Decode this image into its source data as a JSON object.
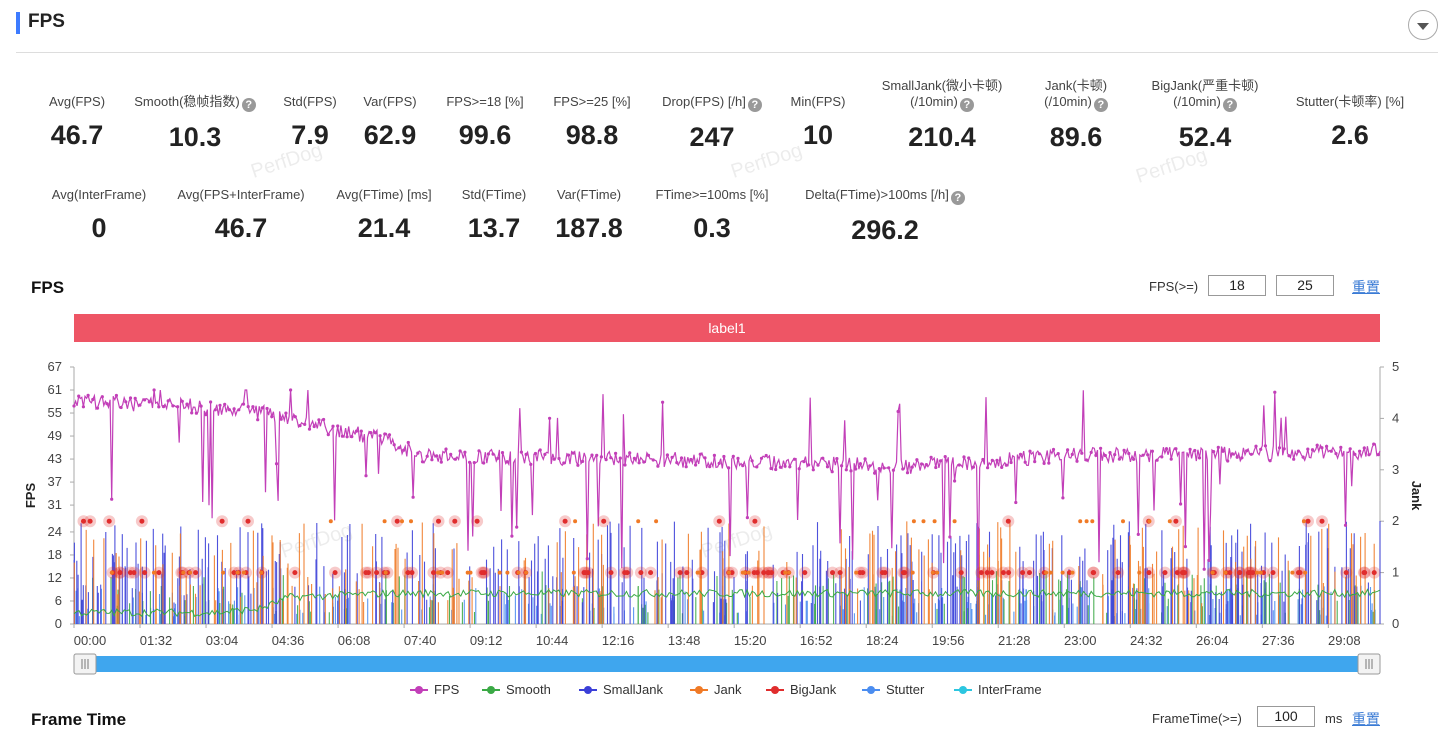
{
  "header": {
    "title": "FPS"
  },
  "stats_row1": [
    {
      "label": "Avg(FPS)",
      "value": "46.7",
      "help": false,
      "cx": 77
    },
    {
      "label": "Smooth(稳帧指数)",
      "value": "10.3",
      "help": true,
      "cx": 195
    },
    {
      "label": "Std(FPS)",
      "value": "7.9",
      "help": false,
      "cx": 310
    },
    {
      "label": "Var(FPS)",
      "value": "62.9",
      "help": false,
      "cx": 390
    },
    {
      "label": "FPS>=18 [%]",
      "value": "99.6",
      "help": false,
      "cx": 485
    },
    {
      "label": "FPS>=25 [%]",
      "value": "98.8",
      "help": false,
      "cx": 592
    },
    {
      "label": "Drop(FPS) [/h]",
      "value": "247",
      "help": true,
      "cx": 712
    },
    {
      "label": "Min(FPS)",
      "value": "10",
      "help": false,
      "cx": 818
    },
    {
      "label": "SmallJank(微小卡顿)",
      "label2": "(/10min)",
      "value": "210.4",
      "help": true,
      "cx": 942
    },
    {
      "label": "Jank(卡顿)",
      "label2": "(/10min)",
      "value": "89.6",
      "help": true,
      "cx": 1076
    },
    {
      "label": "BigJank(严重卡顿)",
      "label2": "(/10min)",
      "value": "52.4",
      "help": true,
      "cx": 1205
    },
    {
      "label": "Stutter(卡顿率) [%]",
      "value": "2.6",
      "help": false,
      "cx": 1350
    }
  ],
  "stats_row2": [
    {
      "label": "Avg(InterFrame)",
      "value": "0",
      "help": false,
      "cx": 99
    },
    {
      "label": "Avg(FPS+InterFrame)",
      "value": "46.7",
      "help": false,
      "cx": 241
    },
    {
      "label": "Avg(FTime) [ms]",
      "value": "21.4",
      "help": false,
      "cx": 384
    },
    {
      "label": "Std(FTime)",
      "value": "13.7",
      "help": false,
      "cx": 494
    },
    {
      "label": "Var(FTime)",
      "value": "187.8",
      "help": false,
      "cx": 589
    },
    {
      "label": "FTime>=100ms [%]",
      "value": "0.3",
      "help": false,
      "cx": 712
    },
    {
      "label": "Delta(FTime)>100ms [/h]",
      "value": "296.2",
      "help": true,
      "cx": 885
    }
  ],
  "watermark": "PerfDog",
  "fps_section": {
    "title": "FPS",
    "threshold_label": "FPS(>=)",
    "threshold1": "18",
    "threshold2": "25",
    "reset": "重置",
    "label_band": "label1"
  },
  "frametime_section": {
    "title": "Frame Time",
    "threshold_label": "FrameTime(>=)",
    "threshold": "100",
    "unit": "ms",
    "reset": "重置"
  },
  "legend": [
    {
      "name": "FPS",
      "color": "#c23fb8"
    },
    {
      "name": "Smooth",
      "color": "#3aa945"
    },
    {
      "name": "SmallJank",
      "color": "#3b3fd8"
    },
    {
      "name": "Jank",
      "color": "#f07a26"
    },
    {
      "name": "BigJank",
      "color": "#e02d2d"
    },
    {
      "name": "Stutter",
      "color": "#4b8df0"
    },
    {
      "name": "InterFrame",
      "color": "#2cc6e0"
    }
  ],
  "chart_data": {
    "type": "line",
    "ylabel": "FPS",
    "y2label": "Jank",
    "ylim": [
      0,
      67
    ],
    "y_ticks": [
      "0",
      "6",
      "12",
      "18",
      "24",
      "31",
      "37",
      "43",
      "49",
      "55",
      "61",
      "67"
    ],
    "y2lim": [
      0,
      5
    ],
    "y2_ticks": [
      "0",
      "1",
      "2",
      "3",
      "4",
      "5"
    ],
    "x_ticks": [
      "00:00",
      "01:32",
      "03:04",
      "04:36",
      "06:08",
      "07:40",
      "09:12",
      "10:44",
      "12:16",
      "13:48",
      "15:20",
      "16:52",
      "18:24",
      "19:56",
      "21:28",
      "23:00",
      "24:32",
      "26:04",
      "27:36",
      "29:08"
    ],
    "x_range_seconds": [
      0,
      1820
    ],
    "fps_segments": [
      [
        0,
        58
      ],
      [
        150,
        57
      ],
      [
        270,
        55
      ],
      [
        380,
        50
      ],
      [
        440,
        48
      ],
      [
        480,
        44
      ],
      [
        800,
        43
      ],
      [
        1000,
        42
      ],
      [
        1160,
        41
      ],
      [
        1380,
        44
      ],
      [
        1490,
        44
      ],
      [
        1820,
        45
      ]
    ],
    "smooth_segments": [
      [
        0,
        3
      ],
      [
        200,
        3
      ],
      [
        260,
        4
      ],
      [
        300,
        7
      ],
      [
        440,
        8
      ],
      [
        1820,
        8
      ]
    ]
  }
}
